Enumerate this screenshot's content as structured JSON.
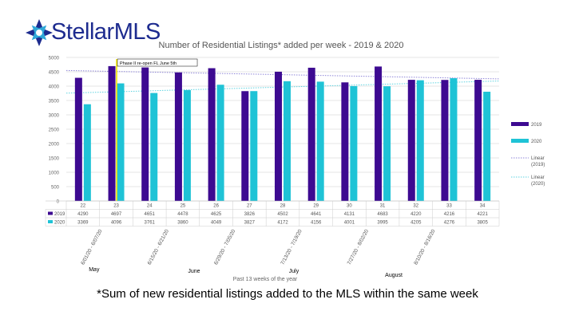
{
  "logo": {
    "brand": "Stellar",
    "suffix": "MLS"
  },
  "chart_data": {
    "type": "bar",
    "title": "Number of Residential Listings* added per week - 2019 & 2020",
    "xlabel": "Past 13 weeks of the year",
    "ylabel": "",
    "ylim": [
      0,
      5000
    ],
    "yticks": [
      0,
      500,
      1000,
      1500,
      2000,
      2500,
      3000,
      3500,
      4000,
      4500,
      5000
    ],
    "grid": true,
    "legend_position": "right",
    "categories": [
      "22",
      "23",
      "24",
      "25",
      "26",
      "27",
      "28",
      "29",
      "30",
      "31",
      "32",
      "33",
      "34"
    ],
    "series": [
      {
        "name": "2019",
        "color": "#3d0a91",
        "values": [
          4290,
          4697,
          4651,
          4478,
          4625,
          3826,
          4502,
          4641,
          4131,
          4683,
          4220,
          4216,
          4221
        ]
      },
      {
        "name": "2020",
        "color": "#1fc3d6",
        "values": [
          3369,
          4096,
          3761,
          3860,
          4049,
          3827,
          4172,
          4156,
          4001,
          3995,
          4205,
          4276,
          3805
        ]
      }
    ],
    "trendlines": [
      {
        "name": "Linear (2019)",
        "color": "#8e85d8",
        "series": "2019"
      },
      {
        "name": "Linear (2020)",
        "color": "#5fd3e0",
        "series": "2020"
      }
    ],
    "legend": [
      {
        "label": "2019",
        "type": "bar",
        "color": "#3d0a91"
      },
      {
        "label": "2020",
        "type": "bar",
        "color": "#1fc3d6"
      },
      {
        "label": "Linear (2019)",
        "type": "line",
        "color": "#8e85d8"
      },
      {
        "label": "Linear (2020)",
        "type": "line",
        "color": "#5fd3e0"
      }
    ],
    "annotation": {
      "text": "Phase II re-open FL June 5th",
      "category": "23"
    },
    "date_ranges": [
      {
        "label": "6/01/20 - 6/07/20",
        "category": "22"
      },
      {
        "label": "6/15/20 - 6/21/20",
        "category": "24"
      },
      {
        "label": "6/29/20 - 7/05/20",
        "category": "26"
      },
      {
        "label": "7/13/20 - 7/19/20",
        "category": "28"
      },
      {
        "label": "7/27/20 - 8/02/20",
        "category": "30"
      },
      {
        "label": "8/10/20 - 8/16/20",
        "category": "32"
      }
    ],
    "months": [
      {
        "label": "May",
        "category": "22"
      },
      {
        "label": "June",
        "category": "25"
      },
      {
        "label": "July",
        "category": "28"
      },
      {
        "label": "August",
        "category": "31"
      }
    ]
  },
  "footnote": "*Sum of new residential listings added to the MLS within the same week"
}
